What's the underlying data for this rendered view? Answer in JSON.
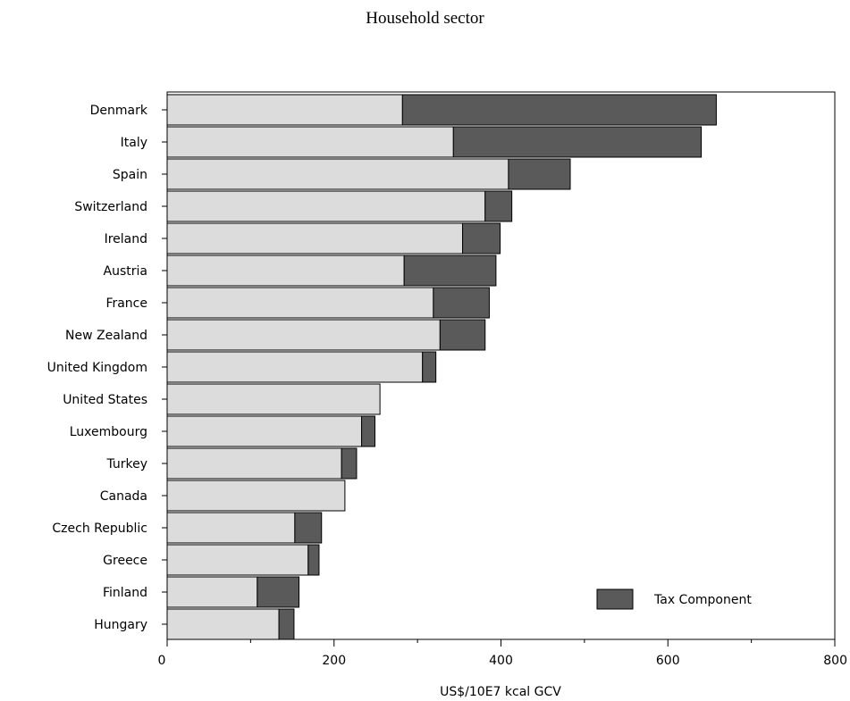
{
  "chart_data": {
    "type": "bar",
    "orientation": "horizontal",
    "stacked": true,
    "title": "Household sector",
    "xlabel": "US$/10E7 kcal GCV",
    "ylabel": "",
    "xlim": [
      0,
      800
    ],
    "xticks": [
      0,
      200,
      400,
      600,
      800
    ],
    "grid": false,
    "legend_position": "bottom-right",
    "categories": [
      "Denmark",
      "Italy",
      "Spain",
      "Switzerland",
      "Ireland",
      "Austria",
      "France",
      "New Zealand",
      "United Kingdom",
      "United States",
      "Luxembourg",
      "Turkey",
      "Canada",
      "Czech Republic",
      "Greece",
      "Finland",
      "Hungary"
    ],
    "series": [
      {
        "color": "#dcdcdc",
        "values": [
          282,
          343,
          409,
          381,
          354,
          284,
          319,
          327,
          306,
          255,
          233,
          209,
          213,
          153,
          169,
          108,
          134
        ]
      },
      {
        "name": "Tax Component",
        "color": "#5a5a5a",
        "values": [
          376,
          297,
          74,
          32,
          45,
          110,
          67,
          54,
          16,
          0,
          16,
          18,
          0,
          32,
          13,
          50,
          18
        ]
      }
    ]
  }
}
